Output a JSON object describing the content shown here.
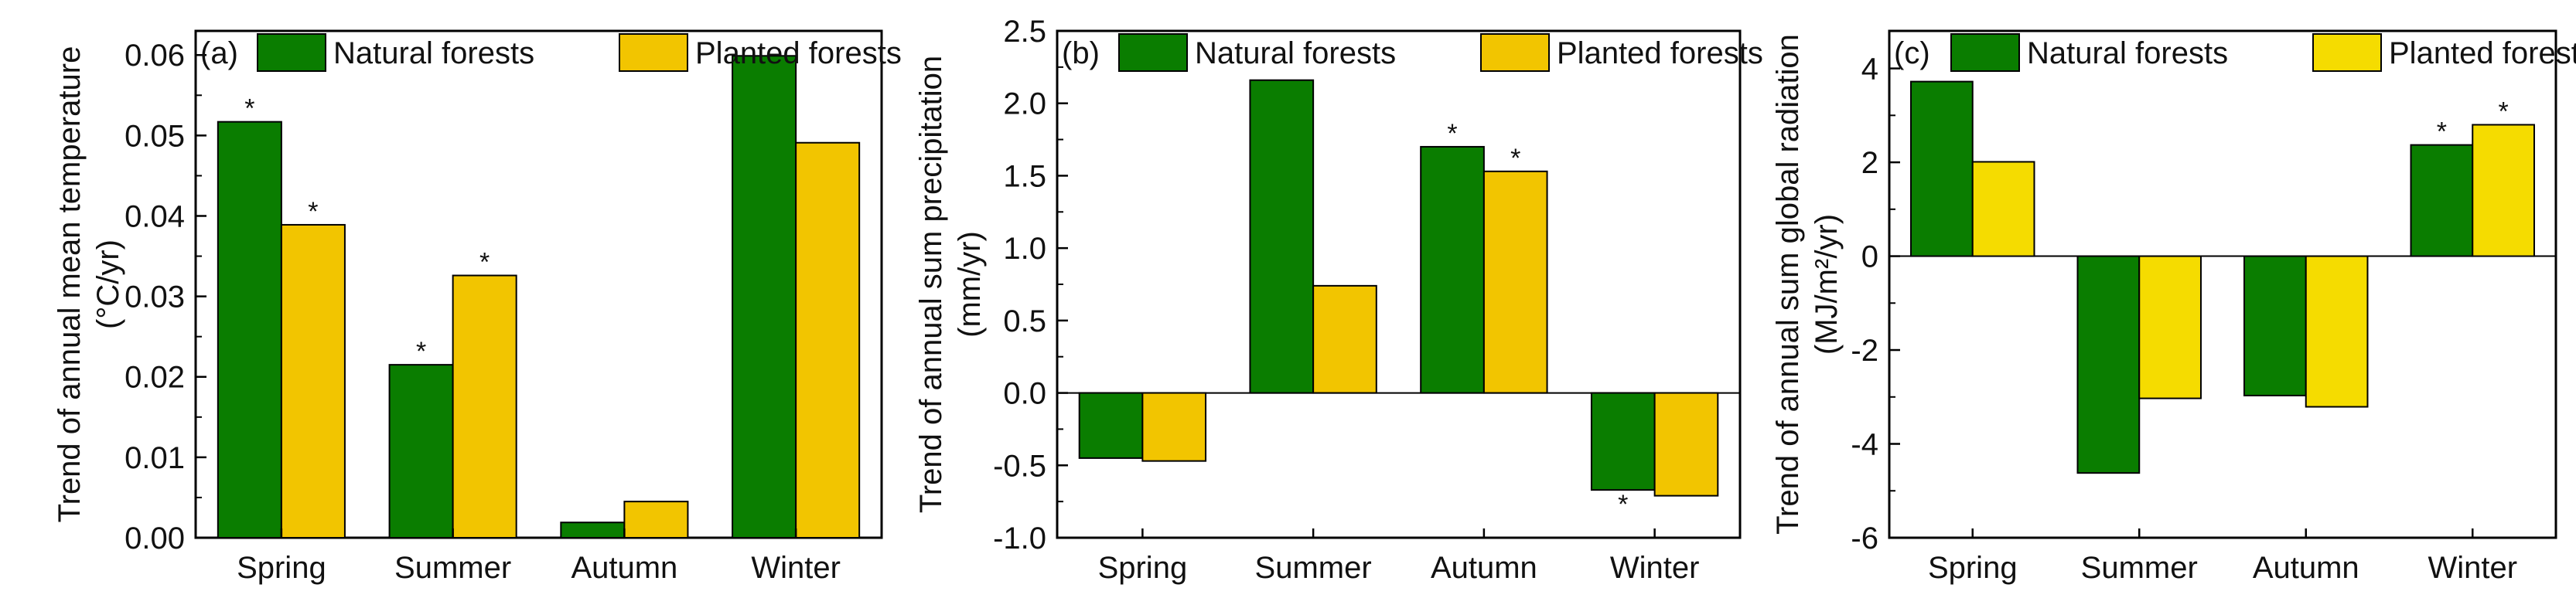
{
  "chart_data": [
    {
      "type": "bar",
      "panel_label": "(a)",
      "categories": [
        "Spring",
        "Summer",
        "Autumn",
        "Winter"
      ],
      "series": [
        {
          "name": "Natural forests",
          "color": "#0a7d00",
          "values": [
            0.0517,
            0.0215,
            0.0019,
            0.0599
          ],
          "significant": [
            true,
            true,
            false,
            false
          ]
        },
        {
          "name": "Planted forests",
          "color": "#f2c500",
          "values": [
            0.0389,
            0.0326,
            0.0045,
            0.0491
          ],
          "significant": [
            true,
            true,
            false,
            false
          ]
        }
      ],
      "ylabel": [
        "Trend of annual mean temperature",
        "(°C/yr)"
      ],
      "ylim": [
        0,
        0.063
      ],
      "yticks": [
        0,
        0.01,
        0.02,
        0.03,
        0.04,
        0.05,
        0.06
      ],
      "ytick_labels": [
        "0.00",
        "0.01",
        "0.02",
        "0.03",
        "0.04",
        "0.05",
        "0.06"
      ],
      "significance_marker": "*",
      "legend": "top"
    },
    {
      "type": "bar",
      "panel_label": "(b)",
      "categories": [
        "Spring",
        "Summer",
        "Autumn",
        "Winter"
      ],
      "series": [
        {
          "name": "Natural forests",
          "color": "#0a7d00",
          "values": [
            -0.45,
            2.16,
            1.7,
            -0.67
          ],
          "significant": [
            false,
            false,
            true,
            true
          ]
        },
        {
          "name": "Planted forests",
          "color": "#f2c500",
          "values": [
            -0.47,
            0.74,
            1.53,
            -0.71
          ],
          "significant": [
            false,
            false,
            true,
            false
          ]
        }
      ],
      "ylabel": [
        "Trend of annual sum precipitation",
        "(mm/yr)"
      ],
      "ylim": [
        -1.0,
        2.5
      ],
      "yticks": [
        -1.0,
        -0.5,
        0.0,
        0.5,
        1.0,
        1.5,
        2.0,
        2.5
      ],
      "ytick_labels": [
        "-1.0",
        "-0.5",
        "0.0",
        "0.5",
        "1.0",
        "1.5",
        "2.0",
        "2.5"
      ],
      "significance_marker": "*",
      "legend": "top"
    },
    {
      "type": "bar",
      "panel_label": "(c)",
      "categories": [
        "Spring",
        "Summer",
        "Autumn",
        "Winter"
      ],
      "series": [
        {
          "name": "Natural forests",
          "color": "#0a7d00",
          "values": [
            3.72,
            -4.62,
            -2.97,
            2.37
          ],
          "significant": [
            false,
            false,
            false,
            true
          ]
        },
        {
          "name": "Planted forests",
          "color": "#f5dc00",
          "values": [
            2.01,
            -3.03,
            -3.21,
            2.8
          ],
          "significant": [
            false,
            false,
            false,
            true
          ]
        }
      ],
      "ylabel": [
        "Trend of annual sum global radiation",
        "(MJ/m²/yr)"
      ],
      "ylim": [
        -6,
        4.8
      ],
      "yticks": [
        -6,
        -4,
        -2,
        0,
        2,
        4
      ],
      "ytick_labels": [
        "-6",
        "-4",
        "-2",
        "0",
        "2",
        "4"
      ],
      "significance_marker": "*",
      "legend": "top"
    }
  ]
}
